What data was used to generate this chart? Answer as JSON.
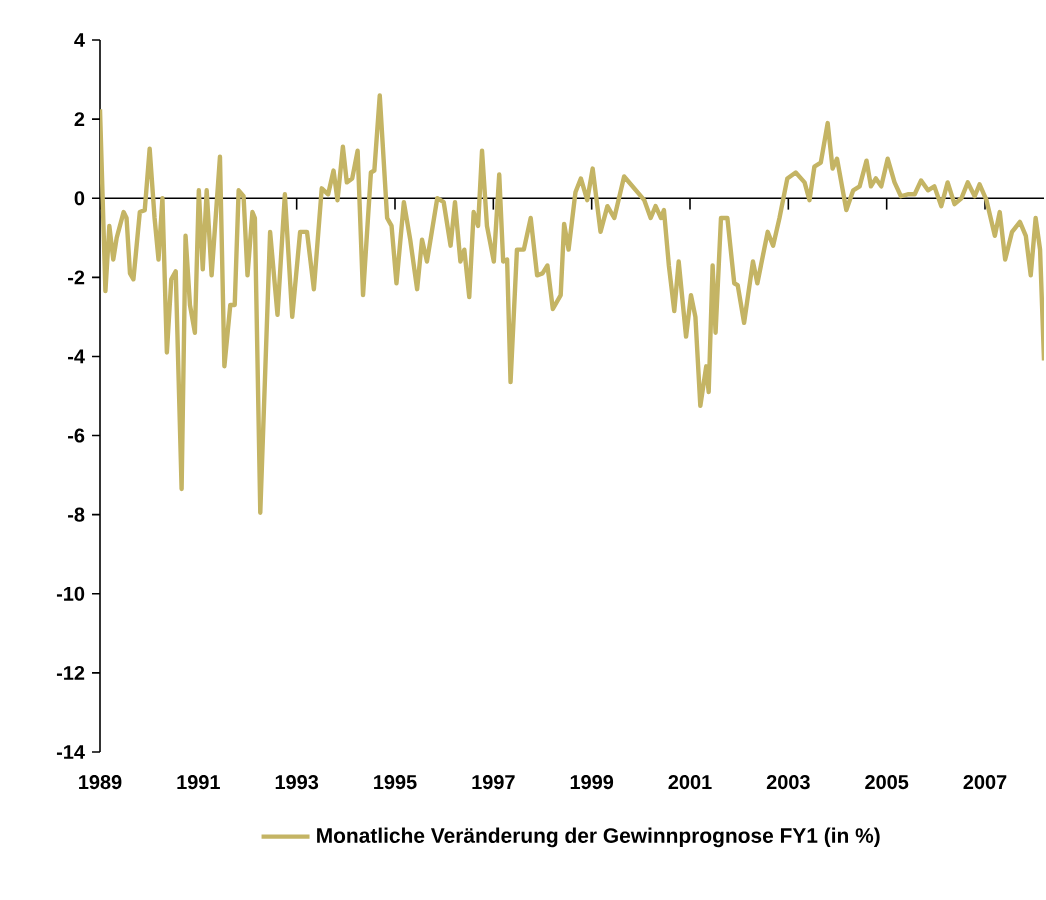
{
  "chart_data": {
    "type": "line",
    "xlim": [
      1989,
      2008.2
    ],
    "ylim": [
      -14,
      4
    ],
    "xticks": [
      1989,
      1991,
      1993,
      1995,
      1997,
      1999,
      2001,
      2003,
      2005,
      2007
    ],
    "yticks": [
      -14,
      -12,
      -10,
      -8,
      -6,
      -4,
      -2,
      0,
      2,
      4
    ],
    "legend": "bottom",
    "marker": "none",
    "line_style": "solid",
    "series": [
      {
        "name": "Monatliche Veränderung der Gewinnprognose FY1 (in %)",
        "color": "#c4b464",
        "x": [
          1989.0,
          1989.11,
          1989.19,
          1989.27,
          1989.34,
          1989.48,
          1989.54,
          1989.61,
          1989.68,
          1989.81,
          1989.91,
          1990.01,
          1990.11,
          1990.19,
          1990.27,
          1990.36,
          1990.45,
          1990.54,
          1990.66,
          1990.74,
          1990.83,
          1990.93,
          1991.01,
          1991.09,
          1991.17,
          1991.27,
          1991.44,
          1991.53,
          1991.65,
          1991.74,
          1991.82,
          1991.92,
          1992.0,
          1992.1,
          1992.15,
          1992.26,
          1992.46,
          1992.61,
          1992.76,
          1992.91,
          1993.07,
          1993.21,
          1993.35,
          1993.51,
          1993.64,
          1993.75,
          1993.83,
          1993.94,
          1994.02,
          1994.13,
          1994.24,
          1994.35,
          1994.51,
          1994.58,
          1994.69,
          1994.84,
          1994.93,
          1995.03,
          1995.18,
          1995.31,
          1995.45,
          1995.55,
          1995.65,
          1995.86,
          1995.99,
          1996.13,
          1996.22,
          1996.33,
          1996.41,
          1996.51,
          1996.6,
          1996.69,
          1996.77,
          1996.87,
          1997.01,
          1997.12,
          1997.2,
          1997.28,
          1997.35,
          1997.48,
          1997.62,
          1997.76,
          1997.89,
          1998.0,
          1998.1,
          1998.21,
          1998.37,
          1998.44,
          1998.53,
          1998.67,
          1998.78,
          1998.91,
          1999.02,
          1999.18,
          1999.32,
          1999.46,
          1999.66,
          2000.07,
          2000.2,
          2000.3,
          2000.41,
          2000.47,
          2000.57,
          2000.68,
          2000.77,
          2000.92,
          2001.02,
          2001.11,
          2001.21,
          2001.33,
          2001.38,
          2001.46,
          2001.52,
          2001.63,
          2001.76,
          2001.9,
          2001.97,
          2002.1,
          2002.28,
          2002.37,
          2002.58,
          2002.69,
          2002.82,
          2002.98,
          2003.15,
          2003.33,
          2003.43,
          2003.53,
          2003.66,
          2003.8,
          2003.9,
          2003.99,
          2004.18,
          2004.32,
          2004.45,
          2004.59,
          2004.68,
          2004.78,
          2004.89,
          2005.02,
          2005.16,
          2005.29,
          2005.43,
          2005.57,
          2005.7,
          2005.84,
          2005.97,
          2006.11,
          2006.24,
          2006.38,
          2006.52,
          2006.65,
          2006.79,
          2006.89,
          2007.03,
          2007.2,
          2007.3,
          2007.41,
          2007.55,
          2007.71,
          2007.83,
          2007.93,
          2008.03,
          2008.12,
          2008.2
        ],
        "values": [
          2.25,
          -2.35,
          -0.7,
          -1.55,
          -1.0,
          -0.35,
          -0.5,
          -1.9,
          -2.05,
          -0.35,
          -0.3,
          1.25,
          -0.5,
          -1.55,
          0,
          -3.9,
          -2.05,
          -1.85,
          -7.35,
          -0.95,
          -2.7,
          -3.4,
          0.2,
          -1.8,
          0.2,
          -1.95,
          1.05,
          -4.25,
          -2.7,
          -2.7,
          0.2,
          0.05,
          -1.95,
          -0.35,
          -0.5,
          -7.95,
          -0.85,
          -2.95,
          0.1,
          -3.0,
          -0.85,
          -0.85,
          -2.3,
          0.25,
          0.1,
          0.7,
          -0.05,
          1.3,
          0.4,
          0.5,
          1.2,
          -2.45,
          0.65,
          0.7,
          2.6,
          -0.5,
          -0.7,
          -2.15,
          -0.1,
          -1.05,
          -2.3,
          -1.05,
          -1.6,
          0,
          -0.1,
          -1.2,
          -0.1,
          -1.6,
          -1.3,
          -2.5,
          -0.35,
          -0.7,
          1.2,
          -0.7,
          -1.6,
          0.6,
          -1.6,
          -1.55,
          -4.65,
          -1.3,
          -1.3,
          -0.5,
          -1.95,
          -1.9,
          -1.7,
          -2.8,
          -2.45,
          -0.65,
          -1.3,
          0.15,
          0.5,
          -0.05,
          0.75,
          -0.85,
          -0.2,
          -0.5,
          0.55,
          -0.05,
          -0.5,
          -0.2,
          -0.5,
          -0.3,
          -1.7,
          -2.85,
          -1.6,
          -3.5,
          -2.45,
          -3.0,
          -5.25,
          -4.25,
          -4.9,
          -1.7,
          -3.4,
          -0.5,
          -0.5,
          -2.15,
          -2.2,
          -3.15,
          -1.6,
          -2.15,
          -0.85,
          -1.2,
          -0.5,
          0.5,
          0.65,
          0.4,
          -0.05,
          0.8,
          0.9,
          1.9,
          0.75,
          1.0,
          -0.3,
          0.2,
          0.3,
          0.95,
          0.3,
          0.5,
          0.3,
          1.0,
          0.4,
          0.05,
          0.1,
          0.1,
          0.45,
          0.2,
          0.3,
          -0.2,
          0.4,
          -0.15,
          0,
          0.4,
          0.05,
          0.35,
          -0.05,
          -0.95,
          -0.35,
          -1.55,
          -0.85,
          -0.6,
          -0.95,
          -1.95,
          -0.5,
          -1.3,
          -4.1
        ]
      }
    ]
  }
}
